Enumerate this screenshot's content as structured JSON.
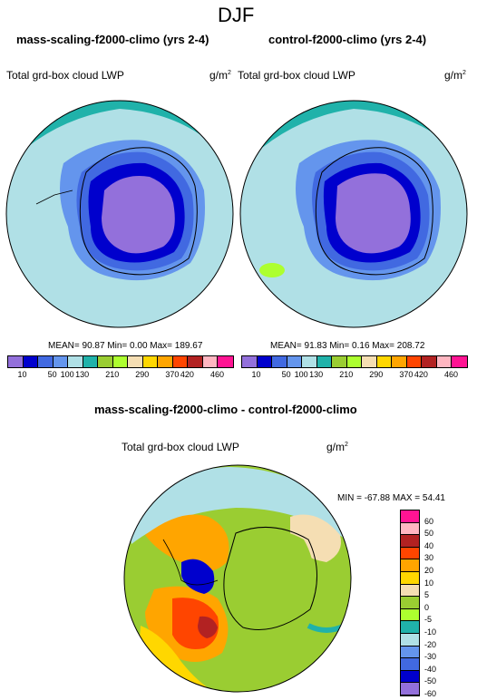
{
  "title": "DJF",
  "panel_left": {
    "title": "mass-scaling-f2000-climo (yrs 2-4)",
    "var": "Total grd-box cloud LWP",
    "unit": "g/m",
    "unit_exp": "2",
    "stats": "MEAN= 90.87  Min=   0.00  Max= 189.67"
  },
  "panel_right": {
    "title": "control-f2000-climo (yrs 2-4)",
    "var": "Total grd-box cloud LWP",
    "unit": "g/m",
    "unit_exp": "2",
    "stats": "MEAN= 91.83  Min=   0.16  Max= 208.72"
  },
  "colorbar_top": {
    "colors": [
      "#9370db",
      "#0000cd",
      "#4169e1",
      "#6495ed",
      "#b0e0e6",
      "#20b2aa",
      "#9acd32",
      "#adff2f",
      "#f5deb3",
      "#ffd700",
      "#ffa500",
      "#ff4500",
      "#b22222",
      "#ffb6c1",
      "#ff1493"
    ],
    "labels": [
      "10",
      "50",
      "100",
      "130",
      "210",
      "290",
      "370",
      "420",
      "460"
    ]
  },
  "diff_panel": {
    "title": "mass-scaling-f2000-climo - control-f2000-climo",
    "var": "Total grd-box cloud LWP",
    "unit": "g/m",
    "unit_exp": "2",
    "stats": "MIN = -67.88  MAX =  54.41"
  },
  "colorbar_diff": {
    "colors": [
      "#ff1493",
      "#ffb6c1",
      "#b22222",
      "#ff4500",
      "#ffa500",
      "#ffd700",
      "#f5deb3",
      "#9acd32",
      "#adff2f",
      "#20b2aa",
      "#b0e0e6",
      "#6495ed",
      "#4169e1",
      "#0000cd",
      "#9370db"
    ],
    "labels": [
      "60",
      "50",
      "40",
      "30",
      "20",
      "10",
      "5",
      "0",
      "-5",
      "-10",
      "-20",
      "-30",
      "-40",
      "-50",
      "-60"
    ]
  }
}
